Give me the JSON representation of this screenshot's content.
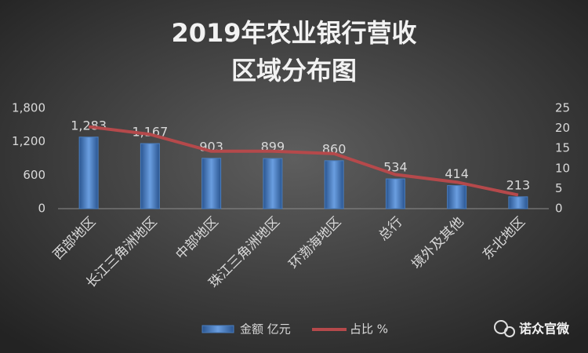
{
  "chart_data": {
    "type": "bar",
    "title": [
      "2019年农业银行营收",
      "区域分布图"
    ],
    "categories": [
      "西部地区",
      "长江三角洲地区",
      "中部地区",
      "珠江三角洲地区",
      "环渤海地区",
      "总行",
      "境外及其他",
      "东北地区"
    ],
    "series": [
      {
        "name": "金额 亿元",
        "type": "bar",
        "color": "#4a7ebf",
        "values": [
          1283,
          1167,
          903,
          899,
          860,
          534,
          414,
          213
        ],
        "value_labels": [
          "1,283",
          "1,167",
          "903",
          "899",
          "860",
          "534",
          "414",
          "213"
        ]
      },
      {
        "name": "占比 %",
        "type": "line",
        "axis": "y2",
        "color": "#b5494b",
        "values": [
          20.4,
          18.5,
          14.3,
          14.3,
          13.7,
          8.5,
          6.6,
          3.4
        ]
      }
    ],
    "ylim": [
      0,
      1800
    ],
    "yticks": [
      0,
      600,
      {
        "value": 1200,
        "label": "1,200"
      },
      {
        "value": 1800,
        "label": "1,800"
      }
    ],
    "y2lim": [
      0,
      25
    ],
    "y2ticks": [
      0,
      5,
      10,
      15,
      20,
      25
    ],
    "grid": false,
    "legend": "bottom",
    "watermark": "诺众官微"
  }
}
